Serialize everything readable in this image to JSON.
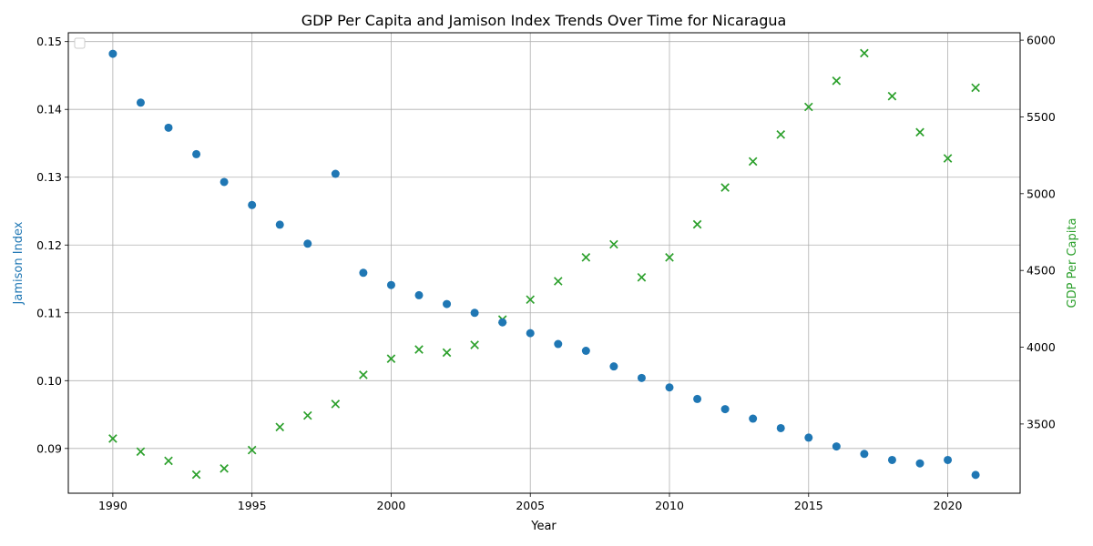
{
  "chart_data": {
    "type": "scatter",
    "title": "GDP Per Capita and Jamison Index Trends Over Time for Nicaragua",
    "xlabel": "Year",
    "ylabel_left": "Jamison Index",
    "ylabel_right": "GDP Per Capita",
    "xlim": [
      1988.4,
      2022.6
    ],
    "ylim_left": [
      0.0834,
      0.1513
    ],
    "ylim_right": [
      3049,
      6048
    ],
    "x_ticks": [
      1990,
      1995,
      2000,
      2005,
      2010,
      2015,
      2020
    ],
    "y_left_ticks": [
      0.09,
      0.1,
      0.11,
      0.12,
      0.13,
      0.14,
      0.15
    ],
    "y_left_tick_labels": [
      "0.09",
      "0.10",
      "0.11",
      "0.12",
      "0.13",
      "0.14",
      "0.15"
    ],
    "y_right_ticks": [
      3500,
      4000,
      4500,
      5000,
      5500,
      6000
    ],
    "grid": true,
    "legend": "top-left",
    "colors": {
      "jamison": "#1f77b4",
      "gdp": "#2ca02c"
    },
    "x": [
      1990,
      1991,
      1992,
      1993,
      1994,
      1995,
      1996,
      1997,
      1998,
      1999,
      2000,
      2001,
      2002,
      2003,
      2004,
      2005,
      2006,
      2007,
      2008,
      2009,
      2010,
      2011,
      2012,
      2013,
      2014,
      2015,
      2016,
      2017,
      2018,
      2019,
      2020,
      2021
    ],
    "series": [
      {
        "axis": "left",
        "marker": "circle",
        "values": [
          0.1482,
          0.141,
          0.1373,
          0.1334,
          0.1293,
          0.1259,
          0.123,
          0.1202,
          0.1305,
          0.1159,
          0.1141,
          0.1126,
          0.1113,
          0.11,
          0.1086,
          0.107,
          0.1054,
          0.1044,
          0.1021,
          0.1004,
          0.099,
          0.0973,
          0.0958,
          0.0944,
          0.093,
          0.0916,
          0.0903,
          0.0892,
          0.0883,
          0.0878,
          0.0883,
          0.0861
        ]
      },
      {
        "axis": "right",
        "marker": "x",
        "values": [
          3405,
          3320,
          3260,
          3170,
          3210,
          3330,
          3480,
          3555,
          3630,
          3820,
          3925,
          3985,
          3965,
          4015,
          4180,
          4310,
          4430,
          4585,
          4670,
          4455,
          4585,
          4800,
          5040,
          5210,
          5385,
          5565,
          5735,
          5915,
          5635,
          5400,
          5230,
          5690
        ]
      }
    ]
  }
}
